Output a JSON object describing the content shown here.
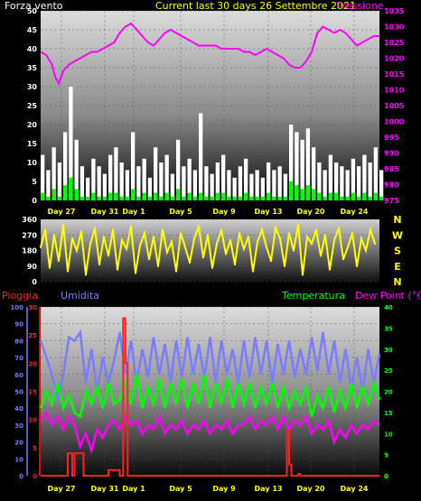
{
  "header": {
    "left_label": "Forza vento",
    "right_label": "Pressione",
    "period_label": "Current last 30 days 26 Settembre 2021",
    "left_color": "#ffffff",
    "right_color": "#ff00ff",
    "period_color": "#ffff00"
  },
  "bottom_header": {
    "rain_label": "Pioggia",
    "hum_label": "Umidita",
    "temp_label": "Temperatura",
    "dew_label": "Dew Point (°C)",
    "rain_color": "#ff2020",
    "hum_color": "#7b7bff",
    "temp_color": "#00ff00",
    "dew_color": "#ff00ff"
  },
  "x_day_labels": [
    "Day 27",
    "Day 31",
    "Day 1",
    "Day 5",
    "Day 9",
    "Day 13",
    "Day 20",
    "Day 24"
  ],
  "wind_dir_compass": [
    "N",
    "W",
    "S",
    "E",
    "N"
  ],
  "chart_data": [
    {
      "type": "line",
      "name": "wind-pressure",
      "xlim": [
        0,
        30
      ],
      "y_left": {
        "ticks": [
          0,
          5,
          10,
          15,
          20,
          25,
          30,
          35,
          40,
          45,
          50
        ],
        "ylim": [
          0,
          50
        ]
      },
      "y_right": {
        "ticks": [
          975,
          980,
          985,
          990,
          995,
          1000,
          1005,
          1010,
          1015,
          1020,
          1025,
          1030,
          1035
        ],
        "ylim": [
          975,
          1035
        ]
      },
      "series": [
        {
          "role": "pressure",
          "color": "#ff00ff",
          "x": [
            0,
            0.5,
            1,
            1.3,
            1.6,
            2,
            2.5,
            3,
            3.5,
            4,
            4.5,
            5,
            5.5,
            6,
            6.5,
            7,
            7.5,
            8,
            8.5,
            9,
            9.5,
            10,
            10.5,
            11,
            11.5,
            12,
            12.5,
            13,
            13.5,
            14,
            14.5,
            15,
            15.5,
            16,
            16.5,
            17,
            17.5,
            18,
            18.5,
            19,
            19.5,
            20,
            20.5,
            21,
            21.5,
            22,
            22.5,
            23,
            23.5,
            24,
            24.5,
            25,
            25.5,
            26,
            26.5,
            27,
            27.5,
            28,
            28.5,
            29,
            29.5,
            30
          ],
          "values": [
            1022,
            1021,
            1018,
            1014,
            1012,
            1016,
            1018,
            1019,
            1020,
            1021,
            1022,
            1022,
            1023,
            1024,
            1025,
            1028,
            1030,
            1031,
            1029,
            1027,
            1025,
            1024,
            1026,
            1028,
            1029,
            1028,
            1027,
            1026,
            1025,
            1024,
            1024,
            1024,
            1024,
            1023,
            1023,
            1023,
            1023,
            1022,
            1022,
            1021,
            1022,
            1023,
            1022,
            1021,
            1020,
            1018,
            1017,
            1017,
            1019,
            1022,
            1028,
            1030,
            1029,
            1028,
            1029,
            1028,
            1026,
            1024,
            1025,
            1026,
            1027,
            1027
          ]
        },
        {
          "role": "wind-gust",
          "color": "#ffffff",
          "x": [
            0,
            0.5,
            1,
            1.5,
            2,
            2.5,
            3,
            3.5,
            4,
            4.5,
            5,
            5.5,
            6,
            6.5,
            7,
            7.5,
            8,
            8.5,
            9,
            9.5,
            10,
            10.5,
            11,
            11.5,
            12,
            12.5,
            13,
            13.5,
            14,
            14.5,
            15,
            15.5,
            16,
            16.5,
            17,
            17.5,
            18,
            18.5,
            19,
            19.5,
            20,
            20.5,
            21,
            21.5,
            22,
            22.5,
            23,
            23.5,
            24,
            24.5,
            25,
            25.5,
            26,
            26.5,
            27,
            27.5,
            28,
            28.5,
            29,
            29.5,
            30
          ],
          "values": [
            12,
            8,
            14,
            10,
            18,
            30,
            16,
            9,
            6,
            11,
            9,
            7,
            12,
            14,
            10,
            8,
            18,
            9,
            11,
            6,
            14,
            10,
            12,
            7,
            16,
            9,
            11,
            8,
            23,
            9,
            7,
            10,
            12,
            8,
            6,
            9,
            11,
            7,
            8,
            6,
            10,
            8,
            9,
            7,
            20,
            18,
            16,
            19,
            14,
            10,
            8,
            12,
            10,
            9,
            8,
            11,
            9,
            12,
            10,
            14,
            8
          ]
        },
        {
          "role": "wind-mean",
          "color": "#00ff00",
          "x": [
            0,
            0.5,
            1,
            1.5,
            2,
            2.5,
            3,
            3.5,
            4,
            4.5,
            5,
            5.5,
            6,
            6.5,
            7,
            7.5,
            8,
            8.5,
            9,
            9.5,
            10,
            10.5,
            11,
            11.5,
            12,
            12.5,
            13,
            13.5,
            14,
            14.5,
            15,
            15.5,
            16,
            16.5,
            17,
            17.5,
            18,
            18.5,
            19,
            19.5,
            20,
            20.5,
            21,
            21.5,
            22,
            22.5,
            23,
            23.5,
            24,
            24.5,
            25,
            25.5,
            26,
            26.5,
            27,
            27.5,
            28,
            28.5,
            29,
            29.5,
            30
          ],
          "values": [
            2,
            1,
            3,
            1,
            4,
            6,
            3,
            1,
            1,
            2,
            1,
            1,
            2,
            2,
            1,
            1,
            3,
            1,
            2,
            1,
            2,
            1,
            2,
            1,
            3,
            1,
            2,
            1,
            2,
            1,
            1,
            2,
            2,
            1,
            1,
            1,
            2,
            1,
            1,
            1,
            2,
            1,
            1,
            1,
            5,
            4,
            3,
            4,
            3,
            2,
            1,
            2,
            2,
            1,
            1,
            2,
            1,
            2,
            1,
            2,
            1
          ]
        }
      ]
    },
    {
      "type": "scatter",
      "name": "wind-direction",
      "xlim": [
        0,
        30
      ],
      "ylim": [
        0,
        360
      ],
      "ticks": [
        0,
        90,
        180,
        270,
        360
      ],
      "color": "#ffff00",
      "x": [
        0,
        0.4,
        0.8,
        1.2,
        1.6,
        2,
        2.4,
        2.8,
        3.2,
        3.6,
        4,
        4.4,
        4.8,
        5.2,
        5.6,
        6,
        6.4,
        6.8,
        7.2,
        7.6,
        8,
        8.4,
        8.8,
        9.2,
        9.6,
        10,
        10.4,
        10.8,
        11.2,
        11.6,
        12,
        12.4,
        12.8,
        13.2,
        13.6,
        14,
        14.4,
        14.8,
        15.2,
        15.6,
        16,
        16.4,
        16.8,
        17.2,
        17.6,
        18,
        18.4,
        18.8,
        19.2,
        19.6,
        20,
        20.4,
        20.8,
        21.2,
        21.6,
        22,
        22.4,
        22.8,
        23.2,
        23.6,
        24,
        24.4,
        24.8,
        25.2,
        25.6,
        26,
        26.4,
        26.8,
        27.2,
        27.6,
        28,
        28.4,
        28.8,
        29.2,
        29.6
      ],
      "values": [
        200,
        300,
        80,
        270,
        120,
        330,
        60,
        250,
        180,
        290,
        40,
        220,
        310,
        100,
        260,
        150,
        300,
        70,
        240,
        190,
        320,
        50,
        210,
        280,
        130,
        260,
        90,
        300,
        170,
        230,
        60,
        280,
        200,
        110,
        250,
        320,
        140,
        270,
        80,
        220,
        300,
        160,
        240,
        100,
        280,
        190,
        260,
        60,
        230,
        300,
        200,
        120,
        310,
        250,
        90,
        280,
        180,
        330,
        40,
        260,
        220,
        300,
        150,
        270,
        70,
        240,
        310,
        130,
        200,
        280,
        90,
        250,
        180,
        300,
        220
      ]
    },
    {
      "type": "line",
      "name": "rain-humidity-temperature-dewpoint",
      "xlim": [
        0,
        30
      ],
      "y_hum": {
        "ticks": [
          0,
          10,
          20,
          30,
          40,
          50,
          60,
          70,
          80,
          90,
          100
        ],
        "ylim": [
          0,
          100
        ]
      },
      "y_rain": {
        "ticks": [
          0,
          5,
          10,
          15,
          20,
          25,
          30
        ],
        "ylim": [
          0,
          30
        ]
      },
      "y_temp": {
        "ticks": [
          0,
          5,
          10,
          15,
          20,
          25,
          30,
          35,
          40
        ],
        "ylim": [
          0,
          40
        ]
      },
      "series": [
        {
          "role": "humidity",
          "color": "#7b7bff",
          "x": [
            0,
            0.5,
            1,
            1.5,
            2,
            2.5,
            3,
            3.5,
            4,
            4.5,
            5,
            5.5,
            6,
            6.5,
            7,
            7.5,
            8,
            8.5,
            9,
            9.5,
            10,
            10.5,
            11,
            11.5,
            12,
            12.5,
            13,
            13.5,
            14,
            14.5,
            15,
            15.5,
            16,
            16.5,
            17,
            17.5,
            18,
            18.5,
            19,
            19.5,
            20,
            20.5,
            21,
            21.5,
            22,
            22.5,
            23,
            23.5,
            24,
            24.5,
            25,
            25.5,
            26,
            26.5,
            27,
            27.5,
            28,
            28.5,
            29,
            29.5,
            30
          ],
          "values": [
            80,
            70,
            60,
            45,
            60,
            82,
            80,
            85,
            55,
            75,
            50,
            70,
            55,
            68,
            85,
            60,
            80,
            55,
            75,
            58,
            82,
            60,
            78,
            55,
            80,
            58,
            82,
            60,
            78,
            58,
            82,
            55,
            80,
            60,
            75,
            55,
            80,
            58,
            82,
            60,
            80,
            55,
            78,
            60,
            80,
            58,
            75,
            60,
            82,
            62,
            85,
            60,
            80,
            55,
            75,
            52,
            70,
            50,
            75,
            55,
            72
          ]
        },
        {
          "role": "temperature",
          "color": "#00ff00",
          "x": [
            0,
            0.5,
            1,
            1.5,
            2,
            2.5,
            3,
            3.5,
            4,
            4.5,
            5,
            5.5,
            6,
            6.5,
            7,
            7.5,
            8,
            8.5,
            9,
            9.5,
            10,
            10.5,
            11,
            11.5,
            12,
            12.5,
            13,
            13.5,
            14,
            14.5,
            15,
            15.5,
            16,
            16.5,
            17,
            17.5,
            18,
            18.5,
            19,
            19.5,
            20,
            20.5,
            21,
            21.5,
            22,
            22.5,
            23,
            23.5,
            24,
            24.5,
            25,
            25.5,
            26,
            26.5,
            27,
            27.5,
            28,
            28.5,
            29,
            29.5,
            30
          ],
          "values": [
            16,
            20,
            17,
            22,
            16,
            19,
            15,
            14,
            20,
            17,
            21,
            16,
            22,
            17,
            18,
            22,
            17,
            24,
            16,
            21,
            17,
            23,
            16,
            22,
            17,
            23,
            16,
            22,
            17,
            24,
            16,
            22,
            17,
            23,
            16,
            22,
            17,
            22,
            16,
            21,
            17,
            22,
            16,
            21,
            16,
            20,
            17,
            21,
            14,
            19,
            16,
            21,
            15,
            20,
            16,
            22,
            16,
            21,
            17,
            22,
            18
          ]
        },
        {
          "role": "dewpoint",
          "color": "#ff00ff",
          "x": [
            0,
            0.5,
            1,
            1.5,
            2,
            2.5,
            3,
            3.5,
            4,
            4.5,
            5,
            5.5,
            6,
            6.5,
            7,
            7.5,
            8,
            8.5,
            9,
            9.5,
            10,
            10.5,
            11,
            11.5,
            12,
            12.5,
            13,
            13.5,
            14,
            14.5,
            15,
            15.5,
            16,
            16.5,
            17,
            17.5,
            18,
            18.5,
            19,
            19.5,
            20,
            20.5,
            21,
            21.5,
            22,
            22.5,
            23,
            23.5,
            24,
            24.5,
            25,
            25.5,
            26,
            26.5,
            27,
            27.5,
            28,
            28.5,
            29,
            29.5,
            30
          ],
          "values": [
            13,
            15,
            12,
            14,
            11,
            14,
            12,
            7,
            10,
            6,
            11,
            9,
            12,
            13,
            11,
            14,
            12,
            13,
            10,
            12,
            11,
            14,
            10,
            12,
            11,
            13,
            10,
            12,
            11,
            13,
            10,
            12,
            11,
            13,
            10,
            12,
            12,
            14,
            11,
            13,
            12,
            14,
            11,
            14,
            11,
            13,
            12,
            14,
            10,
            12,
            11,
            13,
            8,
            11,
            9,
            12,
            10,
            12,
            11,
            13,
            12
          ]
        },
        {
          "role": "rain",
          "color": "#ff2020",
          "x": [
            0,
            2.0,
            2.4,
            2.8,
            3.0,
            3.4,
            3.8,
            5.8,
            6.0,
            6.8,
            7.0,
            7.3,
            7.5,
            7.7,
            8.0,
            21.6,
            21.8,
            22.0,
            22.2,
            22.8,
            23.0,
            25.0,
            30
          ],
          "values": [
            0,
            0,
            4,
            0,
            4,
            4,
            0,
            0,
            1,
            1,
            0,
            28,
            20,
            0,
            0,
            0,
            8,
            2,
            0,
            0.3,
            0,
            0,
            0
          ]
        }
      ]
    }
  ]
}
